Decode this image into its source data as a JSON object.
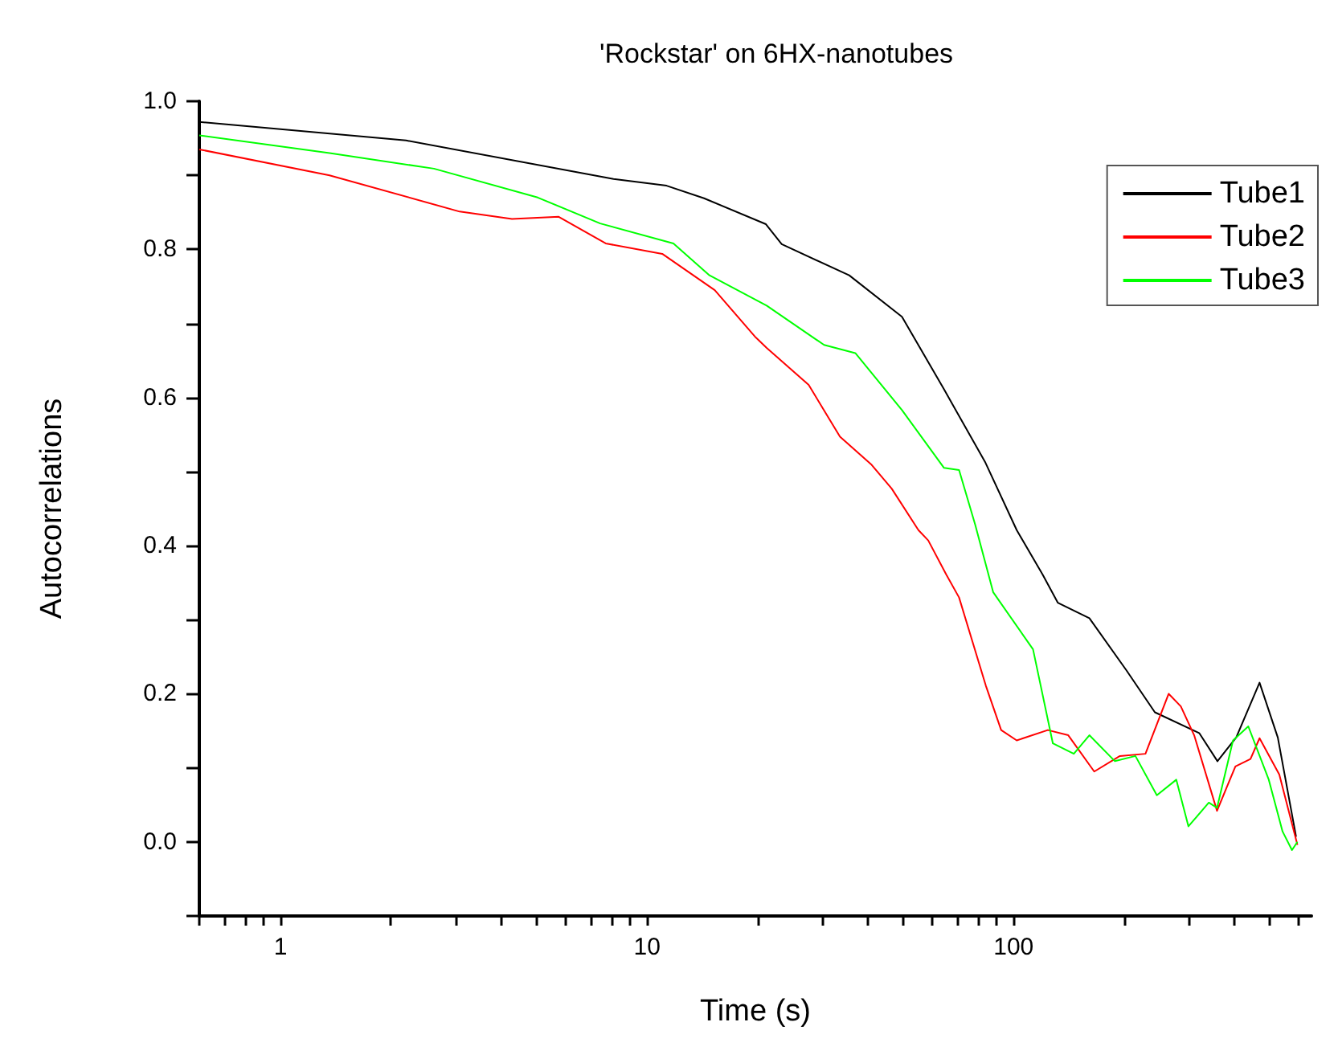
{
  "chart_data": {
    "type": "line",
    "title": "'Rockstar' on 6HX-nanotubes",
    "xlabel": "Time (s)",
    "ylabel": "Autocorrelations",
    "log": "x",
    "xlim": [
      0.6,
      650
    ],
    "ylim": [
      -0.1,
      1.0
    ],
    "xticks": [
      {
        "value": 0.6,
        "label": null
      },
      {
        "value": 0.7,
        "label": null
      },
      {
        "value": 0.8,
        "label": null
      },
      {
        "value": 0.9,
        "label": null
      },
      1,
      {
        "value": 2,
        "label": null
      },
      {
        "value": 3,
        "label": null
      },
      {
        "value": 4,
        "label": null
      },
      {
        "value": 5,
        "label": null
      },
      {
        "value": 6,
        "label": null
      },
      {
        "value": 7,
        "label": null
      },
      {
        "value": 8,
        "label": null
      },
      {
        "value": 9,
        "label": null
      },
      10,
      {
        "value": 20,
        "label": null
      },
      {
        "value": 30,
        "label": null
      },
      {
        "value": 40,
        "label": null
      },
      {
        "value": 50,
        "label": null
      },
      {
        "value": 60,
        "label": null
      },
      {
        "value": 70,
        "label": null
      },
      {
        "value": 80,
        "label": null
      },
      {
        "value": 90,
        "label": null
      },
      100,
      {
        "value": 200,
        "label": null
      },
      {
        "value": 300,
        "label": null
      },
      {
        "value": 400,
        "label": null
      },
      {
        "value": 500,
        "label": null
      },
      {
        "value": 600,
        "label": null
      }
    ],
    "yticks": [
      {
        "value": -0.1,
        "label": null
      },
      {
        "value": 0,
        "label": "0.0"
      },
      {
        "value": 0.1,
        "label": null
      },
      {
        "value": 0.2,
        "label": "0.2"
      },
      {
        "value": 0.3,
        "label": null
      },
      {
        "value": 0.4,
        "label": "0.4"
      },
      {
        "value": 0.5,
        "label": null
      },
      {
        "value": 0.6,
        "label": "0.6"
      },
      {
        "value": 0.7,
        "label": null
      },
      {
        "value": 0.8,
        "label": "0.8"
      },
      {
        "value": 0.9,
        "label": null
      },
      {
        "value": 1.0,
        "label": "1.0"
      }
    ],
    "grid": false,
    "legend": "top right",
    "marker": "none",
    "line_style": "solid",
    "series": [
      {
        "name": "Tube1",
        "color": "#000000",
        "x": [
          0.6,
          2.2,
          8.1,
          11.3,
          14.3,
          21.1,
          23.3,
          35.6,
          49.6,
          64.6,
          83.8,
          102,
          120,
          132,
          161,
          203,
          243,
          321,
          360,
          405,
          469,
          526,
          590
        ],
        "values": [
          0.972,
          0.947,
          0.895,
          0.886,
          0.869,
          0.834,
          0.807,
          0.765,
          0.709,
          0.611,
          0.512,
          0.421,
          0.361,
          0.323,
          0.302,
          0.232,
          0.175,
          0.147,
          0.109,
          0.141,
          0.215,
          0.141,
          0.007
        ]
      },
      {
        "name": "Tube2",
        "color": "#ff0000",
        "x": [
          0.6,
          1.36,
          3.08,
          4.28,
          5.74,
          7.71,
          11,
          15.3,
          19.8,
          21.2,
          27.6,
          33.6,
          41,
          46.5,
          55,
          58.5,
          65.5,
          71,
          84,
          92.5,
          102,
          124,
          141,
          166,
          195,
          229,
          265,
          286,
          311,
          359,
          403,
          443,
          469,
          531,
          595
        ],
        "values": [
          0.935,
          0.9,
          0.851,
          0.841,
          0.844,
          0.808,
          0.794,
          0.745,
          0.681,
          0.667,
          0.617,
          0.547,
          0.509,
          0.477,
          0.421,
          0.407,
          0.361,
          0.33,
          0.211,
          0.151,
          0.137,
          0.151,
          0.144,
          0.095,
          0.116,
          0.119,
          0.2,
          0.183,
          0.144,
          0.042,
          0.102,
          0.112,
          0.14,
          0.091,
          -0.004
        ]
      },
      {
        "name": "Tube3",
        "color": "#00ff00",
        "x": [
          0.6,
          1.36,
          2.62,
          5.03,
          7.45,
          11.8,
          14.8,
          21.2,
          30.4,
          37,
          49.6,
          64.6,
          71,
          78.6,
          88,
          113,
          128,
          146,
          161,
          189,
          215,
          246,
          278,
          300,
          341,
          359,
          397,
          437,
          497,
          542,
          575,
          595
        ],
        "values": [
          0.954,
          0.93,
          0.909,
          0.87,
          0.835,
          0.808,
          0.765,
          0.724,
          0.671,
          0.66,
          0.583,
          0.505,
          0.502,
          0.428,
          0.337,
          0.26,
          0.133,
          0.119,
          0.144,
          0.109,
          0.116,
          0.063,
          0.084,
          0.021,
          0.053,
          0.046,
          0.137,
          0.156,
          0.084,
          0.014,
          -0.011,
          0.0
        ]
      }
    ]
  }
}
